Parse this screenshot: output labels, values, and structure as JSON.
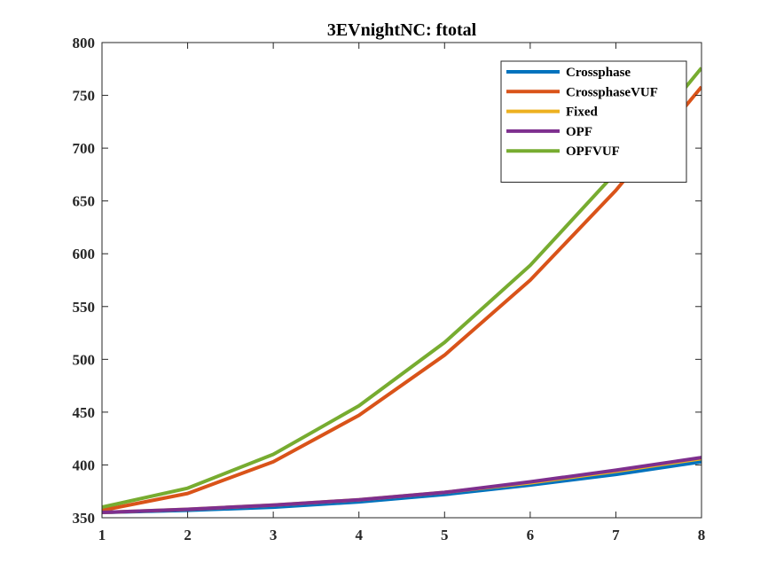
{
  "chart_data": {
    "type": "line",
    "title": "3EVnightNC: ftotal",
    "xlabel": "",
    "ylabel": "",
    "x": [
      1,
      2,
      3,
      4,
      5,
      6,
      7,
      8
    ],
    "xlim": [
      1,
      8
    ],
    "ylim": [
      350,
      800
    ],
    "xticks": [
      1,
      2,
      3,
      4,
      5,
      6,
      7,
      8
    ],
    "yticks": [
      350,
      400,
      450,
      500,
      550,
      600,
      650,
      700,
      750,
      800
    ],
    "grid": false,
    "legend_location": "top-right",
    "series": [
      {
        "name": "Crossphase",
        "color": "#0072BD",
        "values": [
          355,
          357,
          360,
          365,
          372,
          381,
          391,
          403
        ]
      },
      {
        "name": "CrossphaseVUF",
        "color": "#D95319",
        "values": [
          357,
          373,
          403,
          447,
          504,
          575,
          660,
          758
        ]
      },
      {
        "name": "Fixed",
        "color": "#EDB120",
        "values": [
          355,
          358,
          362,
          367,
          374,
          383,
          394,
          406
        ]
      },
      {
        "name": "OPF",
        "color": "#7E2F8E",
        "values": [
          355,
          358,
          362,
          367,
          374,
          384,
          395,
          407
        ]
      },
      {
        "name": "OPFVUF",
        "color": "#77AC30",
        "values": [
          360,
          378,
          410,
          456,
          516,
          589,
          677,
          776
        ]
      }
    ]
  }
}
